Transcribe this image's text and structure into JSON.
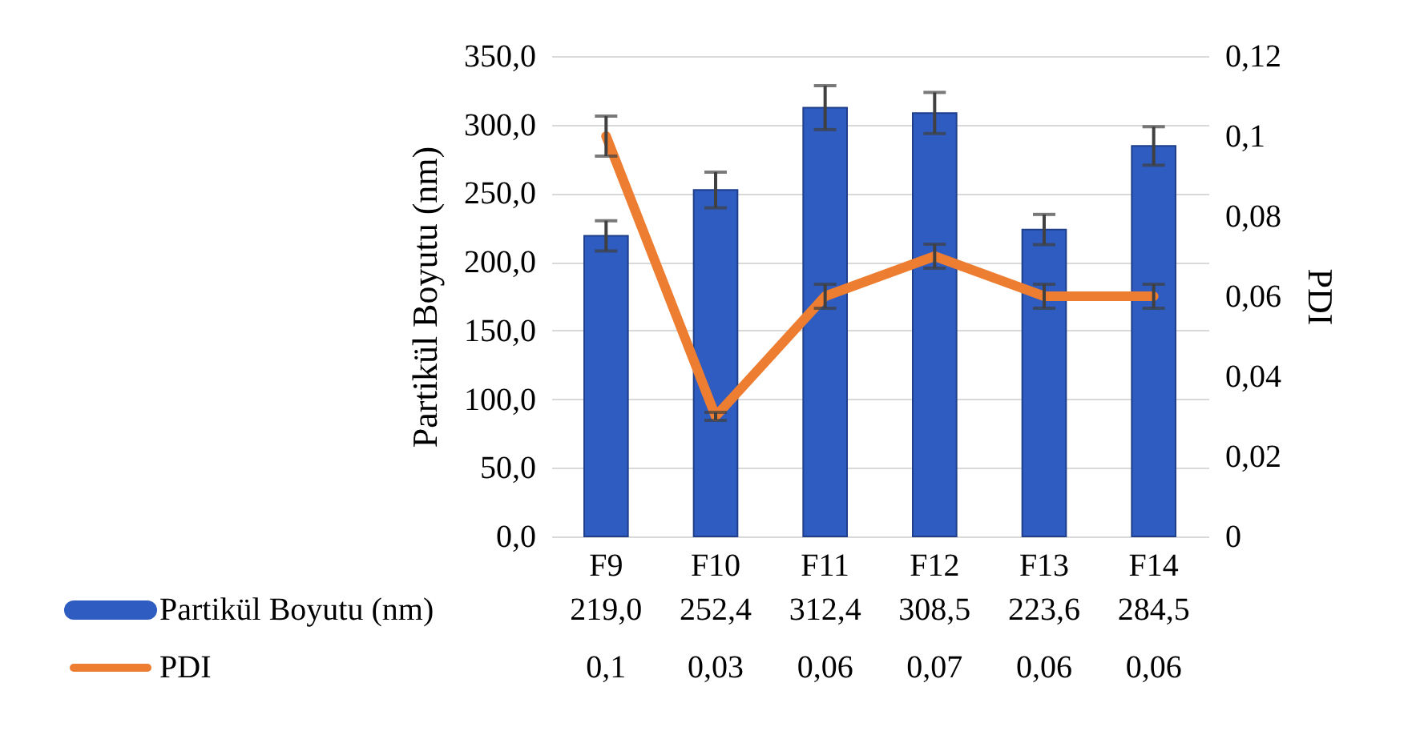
{
  "chart_data": {
    "type": "bar",
    "categories": [
      "F9",
      "F10",
      "F11",
      "F12",
      "F13",
      "F14"
    ],
    "ylabel": "Partikül Boyutu (nm)",
    "y2label": "PDI",
    "series": [
      {
        "name": "Partikül Boyutu (nm)",
        "color": "#2e5cc0",
        "values": [
          219.0,
          252.4,
          312.4,
          308.5,
          223.6,
          284.5
        ],
        "errors": [
          11,
          13,
          16,
          15,
          11,
          14
        ],
        "value_labels": [
          "219,0",
          "252,4",
          "312,4",
          "308,5",
          "223,6",
          "284,5"
        ]
      },
      {
        "name": "PDI",
        "type": "line",
        "axis": "y2",
        "color": "#ed7d31",
        "values": [
          0.1,
          0.03,
          0.06,
          0.07,
          0.06,
          0.06
        ],
        "errors": [
          0.005,
          0.001,
          0.003,
          0.003,
          0.003,
          0.003
        ],
        "value_labels": [
          "0,1",
          "0,03",
          "0,06",
          "0,07",
          "0,06",
          "0,06"
        ]
      }
    ],
    "ylim": [
      0,
      350
    ],
    "yticks": [
      {
        "value": 0,
        "label": "0,0"
      },
      {
        "value": 50,
        "label": "50,0"
      },
      {
        "value": 100,
        "label": "100,0"
      },
      {
        "value": 150,
        "label": "150,0"
      },
      {
        "value": 200,
        "label": "200,0"
      },
      {
        "value": 250,
        "label": "250,0"
      },
      {
        "value": 300,
        "label": "300,0"
      },
      {
        "value": 350,
        "label": "350,0"
      }
    ],
    "y2lim": [
      0,
      0.12
    ],
    "y2ticks": [
      0,
      {
        "value": 0.02,
        "label": "0,02"
      },
      {
        "value": 0.04,
        "label": "0,04"
      },
      {
        "value": 0.06,
        "label": "0,06"
      },
      {
        "value": 0.08,
        "label": "0,08"
      },
      {
        "value": 0.1,
        "label": "0,1"
      },
      {
        "value": 0.12,
        "label": "0,12"
      }
    ],
    "grid": "y",
    "legend": "bottom",
    "marker": "none",
    "line_style": "solid"
  }
}
